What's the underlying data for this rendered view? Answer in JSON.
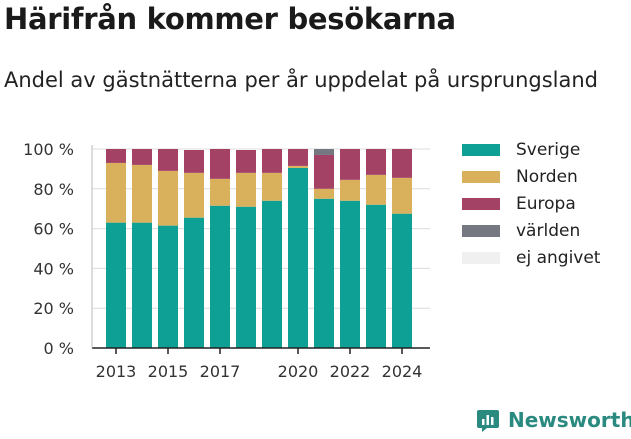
{
  "title": "Härifrån kommer besökarna",
  "subtitle": "Andel av gästnätterna per år uppdelat på ursprungsland",
  "brand": {
    "name": "Newsworthy",
    "icon": "bar-chart-logo-icon",
    "color": "#2a8a80"
  },
  "chart_data": {
    "type": "bar",
    "stacked": true,
    "categories": [
      "2013",
      "2014",
      "2015",
      "2016",
      "2017",
      "2018",
      "2019",
      "2020",
      "2021",
      "2022",
      "2023",
      "2024"
    ],
    "x_tick_labels": [
      "2013",
      "2015",
      "2017",
      "2020",
      "2022",
      "2024"
    ],
    "y_ticks": [
      "0 %",
      "20 %",
      "40 %",
      "60 %",
      "80 %",
      "100 %"
    ],
    "ylim": [
      0,
      100
    ],
    "grid": true,
    "legend_position": "right",
    "series": [
      {
        "name": "Sverige",
        "color": "#0fa095",
        "values": [
          63,
          63,
          61.5,
          65.5,
          71.5,
          71,
          74,
          90.5,
          75,
          74,
          72,
          67.5
        ]
      },
      {
        "name": "Norden",
        "color": "#d9b05c",
        "values": [
          30,
          29,
          27.5,
          22.5,
          13.5,
          17,
          14,
          1,
          5,
          10.5,
          15,
          18
        ]
      },
      {
        "name": "Europa",
        "color": "#a44266",
        "values": [
          7,
          8,
          11,
          11.5,
          15,
          11.5,
          12,
          8.5,
          17,
          15.5,
          13,
          14.5
        ]
      },
      {
        "name": "världen",
        "color": "#757880",
        "values": [
          0,
          0,
          0,
          0,
          0,
          0,
          0,
          0,
          3,
          0,
          0,
          0
        ]
      },
      {
        "name": "ej angivet",
        "color": "#f0f0f0",
        "values": [
          0,
          0,
          0,
          0.5,
          0,
          0.5,
          0,
          0,
          0,
          0,
          0,
          0
        ]
      }
    ]
  }
}
